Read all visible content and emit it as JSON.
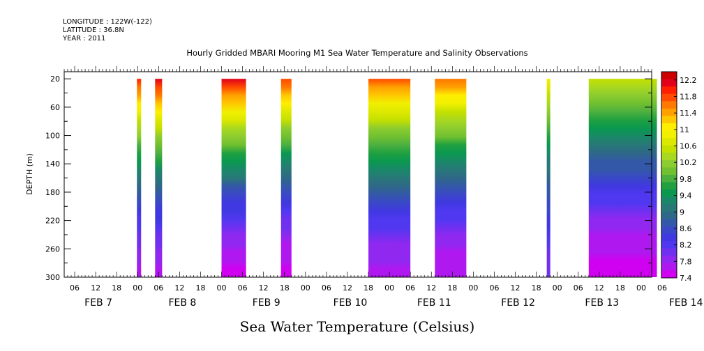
{
  "header": {
    "longitude": "LONGITUDE : 122W(-122)",
    "latitude": "LATITUDE : 36.8N",
    "year": "YEAR : 2011"
  },
  "chart_data": {
    "type": "heatmap",
    "title": "Hourly Gridded MBARI Mooring M1 Sea Water Temperature and Salinity Observations",
    "xlabel": "",
    "ylabel": "DEPTH (m)",
    "colorbar_label": "Sea Water Temperature (Celsius)",
    "x_unit": "hours since FEB 7 00:00, 2011",
    "xlim": [
      3,
      171
    ],
    "ylim": [
      300,
      10
    ],
    "y_ticks": [
      20,
      60,
      100,
      140,
      180,
      220,
      260,
      300
    ],
    "x_hour_tick_labels": [
      "06",
      "12",
      "18",
      "00",
      "06",
      "12",
      "18",
      "00",
      "06",
      "12",
      "18",
      "00",
      "06",
      "12",
      "18",
      "00",
      "06",
      "12",
      "18",
      "00",
      "06",
      "12",
      "18",
      "00",
      "06",
      "12",
      "18",
      "00",
      "06"
    ],
    "x_day_labels": [
      "FEB 7",
      "FEB 8",
      "FEB 9",
      "FEB 10",
      "FEB 11",
      "FEB 12",
      "FEB 13",
      "FEB 14"
    ],
    "colorbar_ticks": [
      12.2,
      11.8,
      11.4,
      11,
      10.6,
      10.2,
      9.8,
      9.4,
      9,
      8.6,
      8.2,
      7.8,
      7.4
    ],
    "colorbar_colors": [
      "#cc0000",
      "#e0001c",
      "#ff2000",
      "#ff4a00",
      "#ff7800",
      "#ffa000",
      "#ffc800",
      "#ffee00",
      "#f0f000",
      "#dde800",
      "#c4e000",
      "#a8d820",
      "#8ccc30",
      "#70c030",
      "#4cb040",
      "#20a040",
      "#0a9850",
      "#1a8868",
      "#287878",
      "#2e6888",
      "#3458a8",
      "#3a48c8",
      "#4038e0",
      "#5038f0",
      "#7030f0",
      "#9028f0",
      "#b018f0",
      "#d000f0"
    ],
    "colorbar_min": 7.4,
    "colorbar_max": 12.4,
    "data_blocks": [
      {
        "start": 23.8,
        "end": 25.0,
        "surface_temp": 11.9,
        "bottom_temp": 7.7
      },
      {
        "start": 29.0,
        "end": 31.0,
        "surface_temp": 12.1,
        "bottom_temp": 7.7
      },
      {
        "start": 48.0,
        "end": 55.0,
        "surface_temp": 12.1,
        "bottom_temp": 7.5
      },
      {
        "start": 65.0,
        "end": 68.0,
        "surface_temp": 11.8,
        "bottom_temp": 7.5
      },
      {
        "start": 90.0,
        "end": 102.0,
        "surface_temp": 11.7,
        "bottom_temp": 7.7
      },
      {
        "start": 109.0,
        "end": 118.0,
        "surface_temp": 11.6,
        "bottom_temp": 7.6
      },
      {
        "start": 141.0,
        "end": 142.0,
        "surface_temp": 10.8,
        "bottom_temp": 8.0
      },
      {
        "start": 153.0,
        "end": 172.5,
        "surface_temp": 10.6,
        "bottom_temp": 7.5
      }
    ]
  }
}
